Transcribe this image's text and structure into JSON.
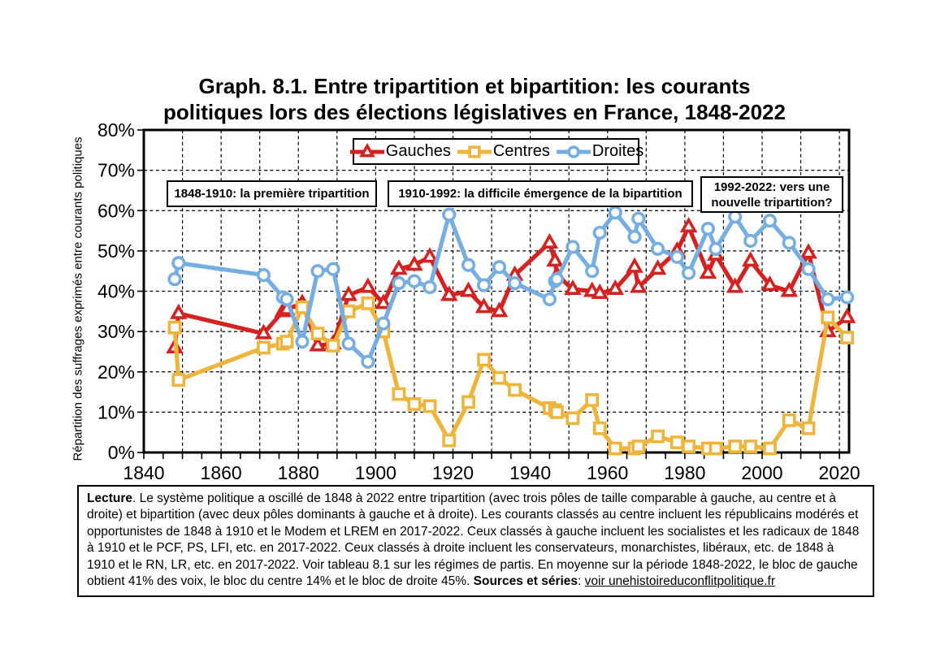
{
  "chart_data": {
    "type": "line",
    "title_line1": "Graph. 8.1. Entre tripartition et bipartition: les courants",
    "title_line2": "politiques lors des élections législatives en France, 1848-2022",
    "ylabel": "Répartition des suffrages exprimés entre courants politiques",
    "xlim": [
      1840,
      2022.5
    ],
    "ylim": [
      0,
      80
    ],
    "grid": "dashed-both-axes",
    "legend_position": "top-center-inside",
    "x_tick_values": [
      1840,
      1860,
      1880,
      1900,
      1920,
      1940,
      1960,
      1980,
      2000,
      2020
    ],
    "x_tick_labels": [
      "1840",
      "1860",
      "1880",
      "1900",
      "1920",
      "1940",
      "1960",
      "1980",
      "2000",
      "2020"
    ],
    "y_tick_values": [
      0,
      10,
      20,
      30,
      40,
      50,
      60,
      70,
      80
    ],
    "y_tick_labels": [
      "0%",
      "10%",
      "20%",
      "30%",
      "40%",
      "50%",
      "60%",
      "70%",
      "80%"
    ],
    "x": [
      1848,
      1849,
      1871,
      1876,
      1877,
      1881,
      1885,
      1889,
      1893,
      1898,
      1902,
      1906,
      1910,
      1914,
      1919,
      1924,
      1928,
      1932,
      1936,
      1945,
      1946.4,
      1946.9,
      1951,
      1956,
      1958,
      1962,
      1967,
      1968,
      1973,
      1978,
      1981,
      1986,
      1988,
      1993,
      1997,
      2002,
      2007,
      2012,
      2017,
      2022
    ],
    "legend": [
      {
        "label": "Gauches",
        "color": "#d42221",
        "marker": "triangle"
      },
      {
        "label": "Centres",
        "color": "#eeb43c",
        "marker": "square"
      },
      {
        "label": "Droites",
        "color": "#76aee1",
        "marker": "circle"
      }
    ],
    "series": [
      {
        "name": "Gauches",
        "color": "#d42221",
        "marker": "triangle",
        "values": [
          26,
          34.5,
          29.5,
          35,
          35.5,
          37,
          26.5,
          27,
          39,
          41,
          37,
          45.5,
          46.5,
          48.5,
          39,
          40,
          36,
          35,
          44,
          52,
          47.5,
          44,
          40.5,
          40,
          39.5,
          40.5,
          46,
          41,
          45.5,
          50,
          56,
          44.5,
          49,
          41,
          47.5,
          41.5,
          40,
          49.5,
          30,
          33.5
        ]
      },
      {
        "name": "Centres",
        "color": "#eeb43c",
        "marker": "square",
        "values": [
          31,
          18,
          26,
          27,
          27.5,
          36,
          29.5,
          26.5,
          35,
          37,
          30,
          14.5,
          12,
          11.5,
          3,
          12.5,
          23,
          18.5,
          15.5,
          11,
          10.5,
          10,
          8.5,
          13,
          6,
          1,
          1,
          1.5,
          4,
          2.5,
          1.5,
          1,
          1,
          1.5,
          1.5,
          1,
          8,
          6,
          33.5,
          28.5
        ]
      },
      {
        "name": "Droites",
        "color": "#76aee1",
        "marker": "circle",
        "values": [
          43,
          47,
          44,
          38.5,
          38,
          27.5,
          45,
          45.5,
          27,
          22.5,
          32,
          42,
          42.5,
          41,
          59,
          46.5,
          41.5,
          46,
          42,
          38,
          42.5,
          43,
          51,
          45,
          54.5,
          59.5,
          53.5,
          58,
          50.5,
          48.5,
          44.5,
          55.5,
          50.5,
          58.5,
          52.5,
          57.5,
          52,
          45.5,
          38,
          38.5
        ]
      }
    ],
    "annotations": [
      {
        "text": "1848-1910: la première tripartition"
      },
      {
        "text": "1910-1992: la difficile émergence de la bipartition"
      },
      {
        "line1": "1992-2022: vers une",
        "line2": "nouvelle tripartition?"
      }
    ]
  },
  "lecture": {
    "label": "Lecture",
    "text": ". Le système politique a oscillé de 1848 à 2022 entre tripartition (avec trois pôles de taille comparable à gauche, au centre et à droite) et bipartition (avec deux pôles dominants à gauche et à droite). Les courants classés au centre incluent les républicains modérés et opportunistes de 1848 à 1910 et le Modem et LREM en 2017-2022. Ceux classés à gauche incluent les socialistes et les radicaux de 1848 à 1910 et le PCF, PS, LFI, etc. en 2017-2022. Ceux classés à droite incluent les conservateurs, monarchistes, libéraux, etc. de 1848 à 1910 et le RN, LR, etc. en 2017-2022. Voir tableau 8.1 sur les régimes de partis. En moyenne sur la période 1848-2022, le bloc de gauche obtient 41% des voix, le bloc du centre 14% et le bloc de droite 45%. ",
    "sources_label": "Sources et séries",
    "sources_sep": ": ",
    "sources_text": "voir unehistoireduconflitpolitique.fr"
  }
}
